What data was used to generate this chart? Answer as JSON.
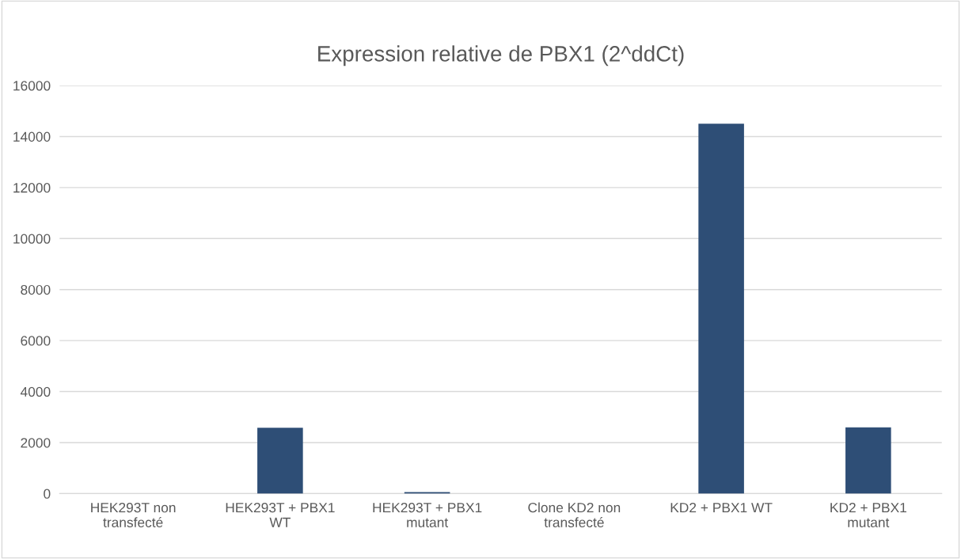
{
  "chart_data": {
    "type": "bar",
    "title": "Expression relative de PBX1 (2^ddCt)",
    "categories": [
      "HEK293T non\ntransfecté",
      "HEK293T + PBX1\nWT",
      "HEK293T + PBX1\nmutant",
      "Clone KD2 non\ntransfecté",
      "KD2 + PBX1 WT",
      "KD2 + PBX1\nmutant"
    ],
    "values": [
      null,
      2580,
      60,
      null,
      14500,
      2600
    ],
    "color": "#2e4e76",
    "ylim": [
      0,
      16000
    ],
    "yticks": [
      0,
      2000,
      4000,
      6000,
      8000,
      10000,
      12000,
      14000,
      16000
    ],
    "grid": "y",
    "legend": false
  }
}
